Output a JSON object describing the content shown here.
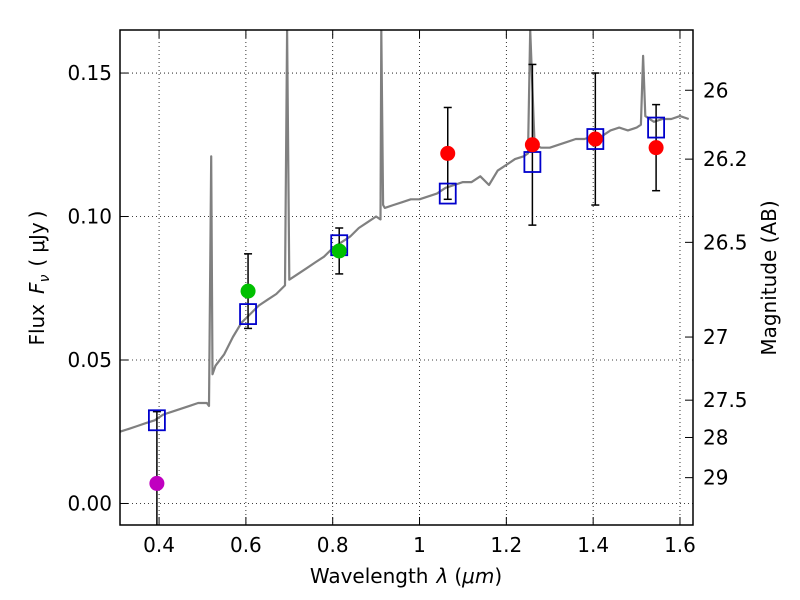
{
  "chart_data": {
    "type": "scatter",
    "xlabel": "Wavelength",
    "xlabel_symbol": "λ",
    "xlabel_unit": "μm",
    "ylabel": "Flux",
    "ylabel_symbol": "F",
    "ylabel_subscript": "ν",
    "ylabel_unit": "μJy",
    "y2label": "Magnitude (AB)",
    "xlim": [
      0.31,
      1.63
    ],
    "ylim": [
      -0.0075,
      0.165
    ],
    "grid": true,
    "xticks": [
      0.4,
      0.6,
      0.8,
      1.0,
      1.2,
      1.4,
      1.6
    ],
    "xtick_labels": [
      "0.4",
      "0.6",
      "0.8",
      "1",
      "1.2",
      "1.4",
      "1.6"
    ],
    "yticks": [
      0.0,
      0.05,
      0.1,
      0.15
    ],
    "ytick_labels": [
      "0.00",
      "0.05",
      "0.10",
      "0.15"
    ],
    "y2ticks": [
      {
        "label": "26",
        "flux": 0.144
      },
      {
        "label": "26.2",
        "flux": 0.12
      },
      {
        "label": "26.5",
        "flux": 0.091
      },
      {
        "label": "27",
        "flux": 0.058
      },
      {
        "label": "27.5",
        "flux": 0.036
      },
      {
        "label": "28",
        "flux": 0.023
      },
      {
        "label": "29",
        "flux": 0.009
      }
    ],
    "series": [
      {
        "kind": "model_spectrum",
        "color": "#808080",
        "points": [
          [
            0.31,
            0.025
          ],
          [
            0.33,
            0.026
          ],
          [
            0.35,
            0.027
          ],
          [
            0.37,
            0.028
          ],
          [
            0.39,
            0.029
          ],
          [
            0.41,
            0.031
          ],
          [
            0.43,
            0.032
          ],
          [
            0.45,
            0.033
          ],
          [
            0.47,
            0.034
          ],
          [
            0.49,
            0.035
          ],
          [
            0.51,
            0.035
          ],
          [
            0.515,
            0.034
          ],
          [
            0.52,
            0.121
          ],
          [
            0.523,
            0.045
          ],
          [
            0.53,
            0.048
          ],
          [
            0.55,
            0.052
          ],
          [
            0.57,
            0.058
          ],
          [
            0.59,
            0.063
          ],
          [
            0.61,
            0.066
          ],
          [
            0.63,
            0.069
          ],
          [
            0.65,
            0.071
          ],
          [
            0.67,
            0.073
          ],
          [
            0.69,
            0.076
          ],
          [
            0.695,
            0.165
          ],
          [
            0.7,
            0.078
          ],
          [
            0.72,
            0.08
          ],
          [
            0.74,
            0.082
          ],
          [
            0.76,
            0.084
          ],
          [
            0.78,
            0.086
          ],
          [
            0.8,
            0.089
          ],
          [
            0.82,
            0.091
          ],
          [
            0.84,
            0.093
          ],
          [
            0.86,
            0.096
          ],
          [
            0.88,
            0.098
          ],
          [
            0.9,
            0.1
          ],
          [
            0.91,
            0.099
          ],
          [
            0.912,
            0.165
          ],
          [
            0.916,
            0.104
          ],
          [
            0.92,
            0.103
          ],
          [
            0.94,
            0.104
          ],
          [
            0.96,
            0.105
          ],
          [
            0.98,
            0.106
          ],
          [
            1.0,
            0.106
          ],
          [
            1.02,
            0.107
          ],
          [
            1.04,
            0.108
          ],
          [
            1.06,
            0.11
          ],
          [
            1.08,
            0.111
          ],
          [
            1.1,
            0.112
          ],
          [
            1.12,
            0.112
          ],
          [
            1.14,
            0.114
          ],
          [
            1.16,
            0.111
          ],
          [
            1.18,
            0.116
          ],
          [
            1.2,
            0.118
          ],
          [
            1.22,
            0.12
          ],
          [
            1.24,
            0.121
          ],
          [
            1.25,
            0.122
          ],
          [
            1.255,
            0.165
          ],
          [
            1.265,
            0.125
          ],
          [
            1.28,
            0.124
          ],
          [
            1.3,
            0.124
          ],
          [
            1.32,
            0.125
          ],
          [
            1.34,
            0.126
          ],
          [
            1.36,
            0.127
          ],
          [
            1.38,
            0.127
          ],
          [
            1.4,
            0.128
          ],
          [
            1.42,
            0.128
          ],
          [
            1.44,
            0.13
          ],
          [
            1.46,
            0.131
          ],
          [
            1.48,
            0.13
          ],
          [
            1.5,
            0.131
          ],
          [
            1.51,
            0.132
          ],
          [
            1.515,
            0.156
          ],
          [
            1.52,
            0.135
          ],
          [
            1.54,
            0.133
          ],
          [
            1.56,
            0.134
          ],
          [
            1.58,
            0.134
          ],
          [
            1.6,
            0.135
          ],
          [
            1.62,
            0.134
          ]
        ]
      },
      {
        "kind": "model_photometry",
        "marker": "open-square",
        "color": "#0000cc",
        "points": [
          [
            0.395,
            0.029
          ],
          [
            0.605,
            0.066
          ],
          [
            0.815,
            0.09
          ],
          [
            1.065,
            0.108
          ],
          [
            1.26,
            0.119
          ],
          [
            1.405,
            0.127
          ],
          [
            1.545,
            0.131
          ]
        ]
      },
      {
        "kind": "observed_photometry",
        "marker": "filled-circle",
        "points": [
          {
            "x": 0.395,
            "y": 0.007,
            "err": 0.025,
            "color": "#c000c0"
          },
          {
            "x": 0.605,
            "y": 0.074,
            "err": 0.013,
            "color": "#00c000"
          },
          {
            "x": 0.815,
            "y": 0.088,
            "err": 0.008,
            "color": "#00c000"
          },
          {
            "x": 1.065,
            "y": 0.122,
            "err": 0.016,
            "color": "#ff0000"
          },
          {
            "x": 1.26,
            "y": 0.125,
            "err": 0.028,
            "color": "#ff0000"
          },
          {
            "x": 1.405,
            "y": 0.127,
            "err": 0.023,
            "color": "#ff0000"
          },
          {
            "x": 1.545,
            "y": 0.124,
            "err": 0.015,
            "color": "#ff0000"
          }
        ]
      }
    ]
  }
}
